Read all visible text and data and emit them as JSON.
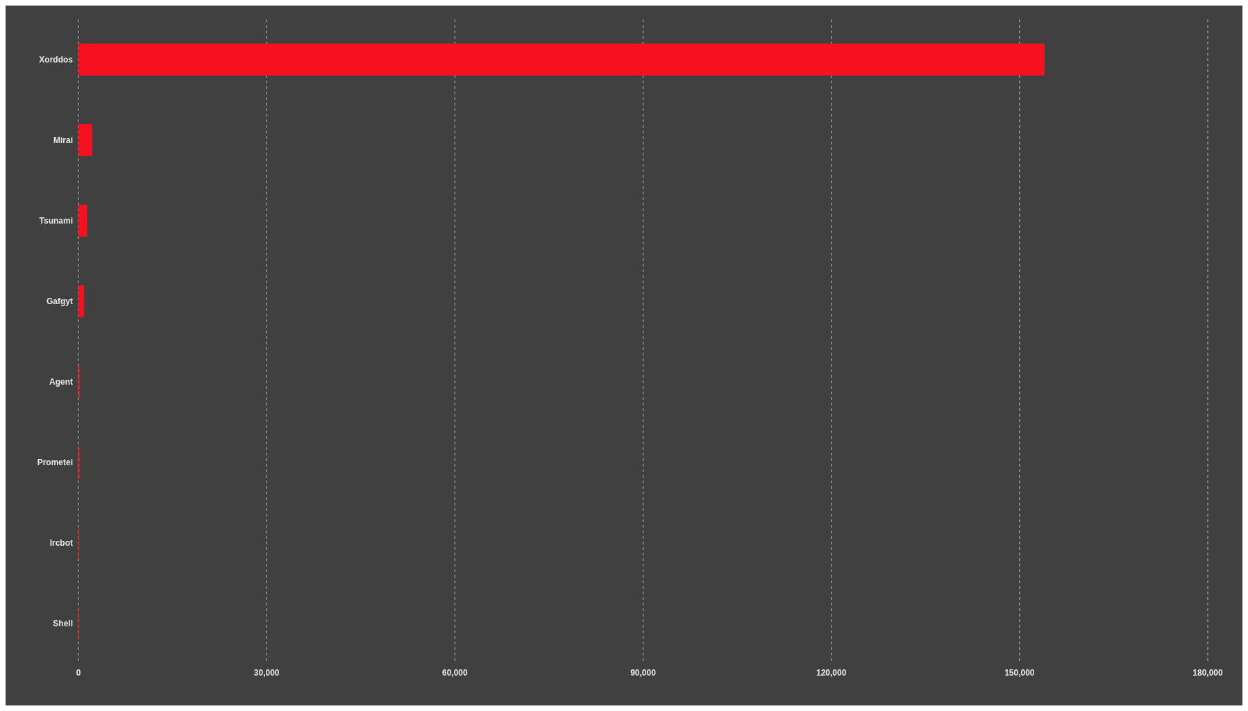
{
  "chart_data": {
    "type": "bar",
    "orientation": "horizontal",
    "categories": [
      "Xorddos",
      "Mirai",
      "Tsunami",
      "Gafgyt",
      "Agent",
      "Prometei",
      "Ircbot",
      "Shell"
    ],
    "values": [
      154000,
      2200,
      1400,
      900,
      200,
      200,
      100,
      100
    ],
    "color": "#f61020",
    "xlim": [
      0,
      180000
    ],
    "xticks": [
      0,
      {
        "value": 30000,
        "label": "30,000"
      },
      {
        "value": 60000,
        "label": "60,000"
      },
      {
        "value": 90000,
        "label": "90,000"
      },
      {
        "value": 120000,
        "label": "120,000"
      },
      {
        "value": 150000,
        "label": "150,000"
      },
      {
        "value": 180000,
        "label": "180,000"
      }
    ],
    "grid": "x",
    "legend": false
  }
}
